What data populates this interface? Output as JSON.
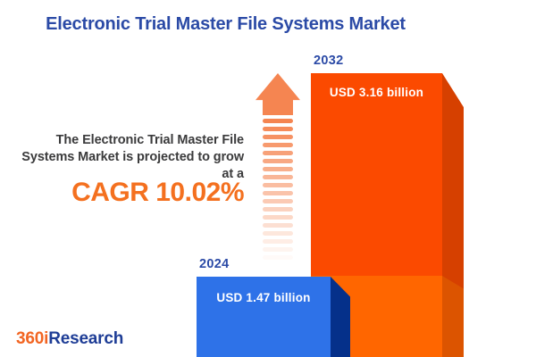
{
  "header": {
    "title": "Electronic Trial Master File Systems Market"
  },
  "description": {
    "lines": [
      "The Electronic Trial Master File",
      "Systems Market is projected to grow",
      "at a"
    ],
    "cagr": "CAGR 10.02%"
  },
  "chart_data": {
    "type": "bar",
    "title": "Electronic Trial Master File Systems Market",
    "categories": [
      "2024",
      "2032"
    ],
    "values": [
      1.47,
      3.16
    ],
    "unit": "USD billion",
    "value_labels": [
      "USD 1.47 billion",
      "USD 3.16 billion"
    ],
    "cagr_percent": 10.02,
    "annotation": "The Electronic Trial Master File Systems Market is projected to grow at a CAGR 10.02%",
    "legend": "none",
    "grid": "off",
    "bar_colors": {
      "2024": "#2E72E8",
      "2032": "#FB4A00"
    }
  },
  "logo": {
    "part1": "360i",
    "part2": "Research"
  },
  "icons": {
    "growth_arrow": "striped-up-arrow"
  },
  "colors": {
    "title_blue": "#2B4AA6",
    "body_text": "#3B3B3C",
    "cagr_orange": "#F4701F",
    "arrow_salmon": "#F58551",
    "bar_2032_front": "#FB4A00",
    "bar_2032_side": "#D64000",
    "bar_2032_base_front": "#FF6600",
    "bar_2032_base_side": "#DC5400",
    "bar_2024_front": "#2E72E8",
    "bar_2024_side": "#05308A",
    "logo_orange": "#F26522",
    "logo_blue": "#1E3D96",
    "background": "#FFFFFF"
  }
}
